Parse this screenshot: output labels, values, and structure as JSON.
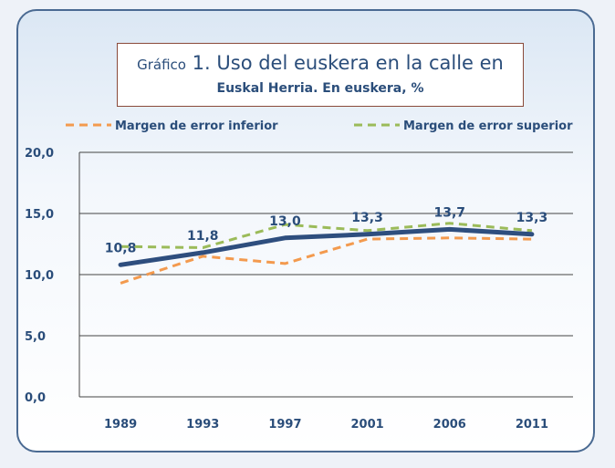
{
  "chart_data": {
    "type": "line",
    "title_prefix": "Gráfico",
    "title": "1. Uso del euskera en la calle en",
    "subtitle": "Euskal Herria.  En euskera, %",
    "categories": [
      "1989",
      "1993",
      "1997",
      "2001",
      "2006",
      "2011"
    ],
    "yticks": [
      "0,0",
      "5,0",
      "10,0",
      "15,0",
      "20,0"
    ],
    "ylim": [
      0,
      20
    ],
    "grid": true,
    "legend_position": "top",
    "series": [
      {
        "key": "main",
        "values": [
          10.8,
          11.8,
          13.0,
          13.3,
          13.7,
          13.3
        ],
        "data_labels": [
          "10,8",
          "11,8",
          "13,0",
          "13,3",
          "13,7",
          "13,3"
        ],
        "color": "#2e4e7e",
        "style": "solid"
      },
      {
        "key": "lower",
        "name": "Margen de error inferior",
        "values": [
          9.3,
          11.5,
          10.9,
          12.9,
          13.0,
          12.9
        ],
        "color": "#f39a4e",
        "style": "dashed"
      },
      {
        "key": "upper",
        "name": "Margen de error superior",
        "values": [
          12.3,
          12.2,
          14.1,
          13.6,
          14.2,
          13.6
        ],
        "color": "#9bbb59",
        "style": "dashed"
      }
    ]
  },
  "colors": {
    "text": "#2a4d7a",
    "grid": "#444444",
    "frame": "#4a6a92"
  }
}
